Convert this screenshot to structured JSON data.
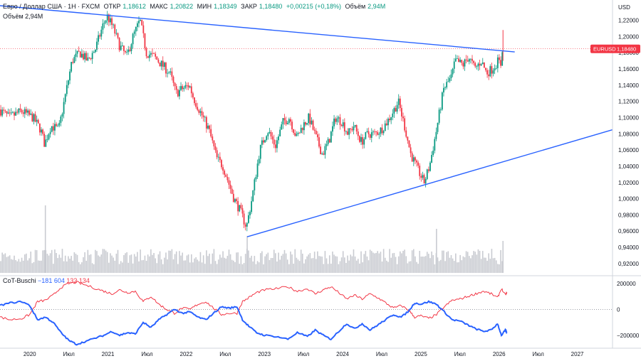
{
  "header": {
    "symbol_desc": "Евро / Доллар США · 1Н · FXCM",
    "open_label": "ОТКР",
    "open": "1,18612",
    "high_label": "МАКС",
    "high": "1,20822",
    "low_label": "МИН",
    "low": "1,18349",
    "close_label": "ЗАКР",
    "close": "1,18480",
    "change": "+0,00215 (+0,18%)",
    "volume_label": "Объём",
    "volume": "2,94M",
    "volume_line": "Объём  2,94M"
  },
  "indicator": {
    "name": "CoT-Buschi",
    "value_blue": "−181 604",
    "value_red": "132 134"
  },
  "colors": {
    "up": "#089981",
    "down": "#f23645",
    "trendline": "#2962ff",
    "volume": "#c9cbd1",
    "price_badge": "#f23645"
  },
  "chart_data": {
    "type": "candlestick",
    "currency": "USD",
    "current_price_label": "EURUSD",
    "current_price": "1,18480",
    "y_ticks": [
      "1,22000",
      "1,20000",
      "1,18000",
      "1,16000",
      "1,14000",
      "1,12000",
      "1,10000",
      "1,08000",
      "1,06000",
      "1,04000",
      "1,02000",
      "1,00000",
      "0,98000",
      "0,96000",
      "0,94000",
      "0,92000"
    ],
    "y_tick_values": [
      1.22,
      1.2,
      1.18,
      1.16,
      1.14,
      1.12,
      1.1,
      1.08,
      1.06,
      1.04,
      1.02,
      1.0,
      0.98,
      0.96,
      0.94,
      0.92
    ],
    "ylim": [
      0.905,
      1.245
    ],
    "x_ticks": [
      "2020",
      "Июл",
      "2021",
      "Июл",
      "2022",
      "Июл",
      "2023",
      "Июл",
      "2024",
      "Июл",
      "2025",
      "Июл",
      "2026",
      "Июл",
      "2027"
    ],
    "x_tick_values": [
      2020.0,
      2020.5,
      2021.0,
      2021.5,
      2022.0,
      2022.5,
      2023.0,
      2023.5,
      2024.0,
      2024.5,
      2025.0,
      2025.5,
      2026.0,
      2026.5,
      2027.0
    ],
    "xlim": [
      2019.62,
      2027.45
    ],
    "price_path": [
      [
        2019.62,
        1.11
      ],
      [
        2019.75,
        1.1
      ],
      [
        2019.9,
        1.108
      ],
      [
        2020.05,
        1.1
      ],
      [
        2020.15,
        1.085
      ],
      [
        2020.2,
        1.067
      ],
      [
        2020.28,
        1.09
      ],
      [
        2020.38,
        1.085
      ],
      [
        2020.45,
        1.12
      ],
      [
        2020.55,
        1.17
      ],
      [
        2020.65,
        1.18
      ],
      [
        2020.75,
        1.17
      ],
      [
        2020.85,
        1.185
      ],
      [
        2020.95,
        1.215
      ],
      [
        2021.0,
        1.225
      ],
      [
        2021.08,
        1.21
      ],
      [
        2021.15,
        1.19
      ],
      [
        2021.25,
        1.175
      ],
      [
        2021.33,
        1.2
      ],
      [
        2021.42,
        1.22
      ],
      [
        2021.5,
        1.18
      ],
      [
        2021.6,
        1.175
      ],
      [
        2021.7,
        1.165
      ],
      [
        2021.8,
        1.155
      ],
      [
        2021.88,
        1.13
      ],
      [
        2021.95,
        1.135
      ],
      [
        2022.05,
        1.14
      ],
      [
        2022.1,
        1.125
      ],
      [
        2022.2,
        1.105
      ],
      [
        2022.3,
        1.085
      ],
      [
        2022.4,
        1.05
      ],
      [
        2022.48,
        1.04
      ],
      [
        2022.55,
        1.02
      ],
      [
        2022.62,
        1.0
      ],
      [
        2022.7,
        0.985
      ],
      [
        2022.78,
        0.965
      ],
      [
        2022.85,
        1.0
      ],
      [
        2022.95,
        1.06
      ],
      [
        2023.05,
        1.085
      ],
      [
        2023.15,
        1.065
      ],
      [
        2023.25,
        1.095
      ],
      [
        2023.33,
        1.1
      ],
      [
        2023.42,
        1.075
      ],
      [
        2023.5,
        1.09
      ],
      [
        2023.58,
        1.1
      ],
      [
        2023.67,
        1.075
      ],
      [
        2023.75,
        1.055
      ],
      [
        2023.83,
        1.07
      ],
      [
        2023.92,
        1.1
      ],
      [
        2024.0,
        1.095
      ],
      [
        2024.08,
        1.08
      ],
      [
        2024.15,
        1.09
      ],
      [
        2024.25,
        1.07
      ],
      [
        2024.33,
        1.08
      ],
      [
        2024.42,
        1.08
      ],
      [
        2024.5,
        1.085
      ],
      [
        2024.58,
        1.095
      ],
      [
        2024.67,
        1.11
      ],
      [
        2024.72,
        1.12
      ],
      [
        2024.8,
        1.09
      ],
      [
        2024.88,
        1.055
      ],
      [
        2024.95,
        1.04
      ],
      [
        2025.05,
        1.02
      ],
      [
        2025.12,
        1.04
      ],
      [
        2025.2,
        1.08
      ],
      [
        2025.3,
        1.135
      ],
      [
        2025.4,
        1.15
      ],
      [
        2025.45,
        1.17
      ],
      [
        2025.55,
        1.165
      ],
      [
        2025.62,
        1.175
      ],
      [
        2025.7,
        1.16
      ],
      [
        2025.78,
        1.17
      ],
      [
        2025.85,
        1.155
      ],
      [
        2025.92,
        1.16
      ],
      [
        2026.0,
        1.17
      ],
      [
        2026.03,
        1.165
      ],
      [
        2026.05,
        1.185
      ]
    ],
    "trendlines": [
      {
        "x": [
          2019.62,
          2026.2
        ],
        "y": [
          1.238,
          1.181
        ]
      },
      {
        "x": [
          2022.78,
          2027.45
        ],
        "y": [
          0.953,
          1.085
        ]
      }
    ],
    "indicator": {
      "y_ticks": [
        "200000",
        "0",
        "−200000"
      ],
      "y_tick_values": [
        200000,
        0,
        -200000
      ],
      "ylim": [
        -300000,
        260000
      ],
      "blue_path": [
        [
          2019.62,
          30000
        ],
        [
          2019.75,
          50000
        ],
        [
          2019.9,
          60000
        ],
        [
          2020.0,
          30000
        ],
        [
          2020.1,
          -80000
        ],
        [
          2020.2,
          -60000
        ],
        [
          2020.3,
          -100000
        ],
        [
          2020.4,
          -180000
        ],
        [
          2020.5,
          -240000
        ],
        [
          2020.6,
          -270000
        ],
        [
          2020.7,
          -250000
        ],
        [
          2020.85,
          -220000
        ],
        [
          2020.95,
          -200000
        ],
        [
          2021.05,
          -170000
        ],
        [
          2021.15,
          -200000
        ],
        [
          2021.25,
          -180000
        ],
        [
          2021.35,
          -190000
        ],
        [
          2021.45,
          -100000
        ],
        [
          2021.55,
          -140000
        ],
        [
          2021.65,
          -80000
        ],
        [
          2021.75,
          -40000
        ],
        [
          2021.85,
          0
        ],
        [
          2021.95,
          -30000
        ],
        [
          2022.05,
          -20000
        ],
        [
          2022.15,
          -60000
        ],
        [
          2022.25,
          -80000
        ],
        [
          2022.35,
          -30000
        ],
        [
          2022.45,
          20000
        ],
        [
          2022.55,
          10000
        ],
        [
          2022.65,
          20000
        ],
        [
          2022.72,
          -80000
        ],
        [
          2022.8,
          -130000
        ],
        [
          2022.9,
          -180000
        ],
        [
          2023.0,
          -200000
        ],
        [
          2023.15,
          -210000
        ],
        [
          2023.3,
          -230000
        ],
        [
          2023.42,
          -180000
        ],
        [
          2023.55,
          -210000
        ],
        [
          2023.65,
          -160000
        ],
        [
          2023.75,
          -200000
        ],
        [
          2023.85,
          -230000
        ],
        [
          2023.95,
          -170000
        ],
        [
          2024.05,
          -110000
        ],
        [
          2024.15,
          -150000
        ],
        [
          2024.25,
          -110000
        ],
        [
          2024.35,
          -160000
        ],
        [
          2024.45,
          -120000
        ],
        [
          2024.55,
          -80000
        ],
        [
          2024.65,
          -40000
        ],
        [
          2024.75,
          -60000
        ],
        [
          2024.85,
          -10000
        ],
        [
          2024.92,
          50000
        ],
        [
          2025.0,
          40000
        ],
        [
          2025.1,
          60000
        ],
        [
          2025.2,
          40000
        ],
        [
          2025.3,
          -20000
        ],
        [
          2025.4,
          -80000
        ],
        [
          2025.5,
          -90000
        ],
        [
          2025.6,
          -120000
        ],
        [
          2025.7,
          -150000
        ],
        [
          2025.8,
          -170000
        ],
        [
          2025.9,
          -160000
        ],
        [
          2025.98,
          -110000
        ],
        [
          2026.03,
          -200000
        ],
        [
          2026.08,
          -160000
        ],
        [
          2026.1,
          -181604
        ]
      ],
      "red_path": [
        [
          2019.62,
          -60000
        ],
        [
          2019.75,
          -80000
        ],
        [
          2019.9,
          -70000
        ],
        [
          2020.0,
          -40000
        ],
        [
          2020.1,
          60000
        ],
        [
          2020.2,
          70000
        ],
        [
          2020.3,
          110000
        ],
        [
          2020.4,
          170000
        ],
        [
          2020.5,
          200000
        ],
        [
          2020.6,
          210000
        ],
        [
          2020.7,
          190000
        ],
        [
          2020.85,
          160000
        ],
        [
          2020.95,
          140000
        ],
        [
          2021.05,
          120000
        ],
        [
          2021.15,
          150000
        ],
        [
          2021.25,
          130000
        ],
        [
          2021.35,
          140000
        ],
        [
          2021.45,
          60000
        ],
        [
          2021.55,
          100000
        ],
        [
          2021.65,
          40000
        ],
        [
          2021.75,
          0
        ],
        [
          2021.85,
          -30000
        ],
        [
          2021.95,
          10000
        ],
        [
          2022.05,
          0
        ],
        [
          2022.15,
          40000
        ],
        [
          2022.25,
          60000
        ],
        [
          2022.35,
          10000
        ],
        [
          2022.45,
          -40000
        ],
        [
          2022.55,
          -30000
        ],
        [
          2022.65,
          -30000
        ],
        [
          2022.72,
          60000
        ],
        [
          2022.8,
          90000
        ],
        [
          2022.9,
          130000
        ],
        [
          2023.0,
          150000
        ],
        [
          2023.15,
          160000
        ],
        [
          2023.3,
          175000
        ],
        [
          2023.42,
          140000
        ],
        [
          2023.55,
          160000
        ],
        [
          2023.65,
          120000
        ],
        [
          2023.75,
          150000
        ],
        [
          2023.85,
          175000
        ],
        [
          2023.95,
          130000
        ],
        [
          2024.05,
          80000
        ],
        [
          2024.15,
          110000
        ],
        [
          2024.25,
          80000
        ],
        [
          2024.35,
          120000
        ],
        [
          2024.45,
          90000
        ],
        [
          2024.55,
          50000
        ],
        [
          2024.65,
          10000
        ],
        [
          2024.75,
          30000
        ],
        [
          2024.85,
          -10000
        ],
        [
          2024.92,
          -60000
        ],
        [
          2025.0,
          -50000
        ],
        [
          2025.1,
          -70000
        ],
        [
          2025.2,
          -40000
        ],
        [
          2025.3,
          20000
        ],
        [
          2025.4,
          70000
        ],
        [
          2025.5,
          80000
        ],
        [
          2025.6,
          100000
        ],
        [
          2025.7,
          120000
        ],
        [
          2025.8,
          140000
        ],
        [
          2025.9,
          120000
        ],
        [
          2025.98,
          90000
        ],
        [
          2026.03,
          160000
        ],
        [
          2026.08,
          110000
        ],
        [
          2026.1,
          132134
        ]
      ]
    }
  }
}
